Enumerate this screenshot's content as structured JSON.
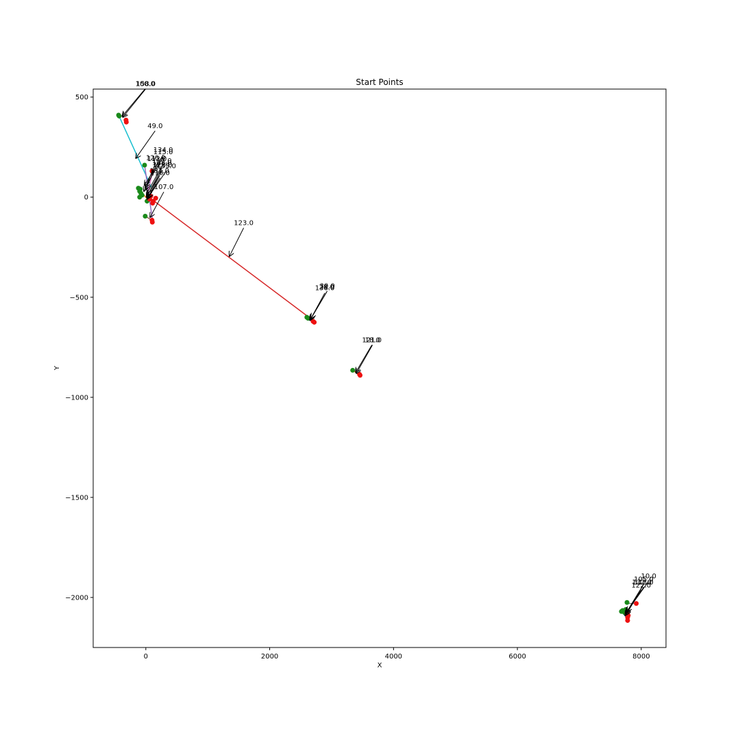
{
  "chart_data": {
    "type": "scatter",
    "title": "Start Points",
    "xlabel": "X",
    "ylabel": "Y",
    "xlim": [
      -850,
      8400
    ],
    "ylim": [
      -2250,
      540
    ],
    "xticks": [
      0,
      2000,
      4000,
      6000,
      8000
    ],
    "xtick_labels": [
      "0",
      "2000",
      "4000",
      "6000",
      "8000"
    ],
    "yticks": [
      500,
      0,
      -500,
      -1000,
      -1500,
      -2000
    ],
    "ytick_labels": [
      "500",
      "0",
      "−500",
      "−1000",
      "−1500",
      "−2000"
    ],
    "grid": false,
    "legend": "none",
    "colors": {
      "start_point": "#1a8a1a",
      "end_point": "#ee1111",
      "arrow": "#000000"
    },
    "segments": [
      {
        "x": [
          -440,
          90
        ],
        "y": [
          410,
          50
        ],
        "color": "#17becf"
      },
      {
        "x": [
          50,
          2720
        ],
        "y": [
          0,
          -620
        ],
        "color": "#d62728"
      },
      {
        "x": [
          -20,
          110
        ],
        "y": [
          160,
          -120
        ],
        "color": "#9467bd"
      },
      {
        "x": [
          -10,
          100
        ],
        "y": [
          -95,
          -115
        ],
        "color": "#8c564b"
      },
      {
        "x": [
          40,
          110
        ],
        "y": [
          30,
          130
        ],
        "color": "#e377c2"
      },
      {
        "x": [
          -120,
          60
        ],
        "y": [
          40,
          -20
        ],
        "color": "#ff7f0e"
      },
      {
        "x": [
          2600,
          2720
        ],
        "y": [
          -600,
          -625
        ],
        "color": "#2ca02c"
      },
      {
        "x": [
          3340,
          3460
        ],
        "y": [
          -865,
          -890
        ],
        "color": "#ff7f0e"
      },
      {
        "x": [
          7680,
          7790
        ],
        "y": [
          -2070,
          -2110
        ],
        "color": "#1f77b4"
      },
      {
        "x": [
          7770,
          7920
        ],
        "y": [
          -2030,
          -2030
        ],
        "color": "#7f7f7f"
      }
    ],
    "start_points": [
      {
        "x": -440,
        "y": 410
      },
      {
        "x": -430,
        "y": 405
      },
      {
        "x": -20,
        "y": 160
      },
      {
        "x": -120,
        "y": 45
      },
      {
        "x": -100,
        "y": 30
      },
      {
        "x": -80,
        "y": 20
      },
      {
        "x": -90,
        "y": 40
      },
      {
        "x": -60,
        "y": 10
      },
      {
        "x": -100,
        "y": 0
      },
      {
        "x": -10,
        "y": -95
      },
      {
        "x": 20,
        "y": -20
      },
      {
        "x": 2600,
        "y": -600
      },
      {
        "x": 2620,
        "y": -605
      },
      {
        "x": 3340,
        "y": -865
      },
      {
        "x": 7680,
        "y": -2070
      },
      {
        "x": 7700,
        "y": -2065
      },
      {
        "x": 7770,
        "y": -2025
      },
      {
        "x": 7730,
        "y": -2075
      },
      {
        "x": 7750,
        "y": -2060
      }
    ],
    "end_points": [
      {
        "x": -320,
        "y": 385
      },
      {
        "x": -315,
        "y": 375
      },
      {
        "x": 100,
        "y": 130
      },
      {
        "x": 160,
        "y": -5
      },
      {
        "x": 110,
        "y": -30
      },
      {
        "x": 120,
        "y": -20
      },
      {
        "x": 100,
        "y": -115
      },
      {
        "x": 105,
        "y": -125
      },
      {
        "x": 60,
        "y": -10
      },
      {
        "x": 80,
        "y": 5
      },
      {
        "x": 2700,
        "y": -620
      },
      {
        "x": 2720,
        "y": -625
      },
      {
        "x": 3450,
        "y": -885
      },
      {
        "x": 3460,
        "y": -890
      },
      {
        "x": 7780,
        "y": -2100
      },
      {
        "x": 7790,
        "y": -2090
      },
      {
        "x": 7780,
        "y": -2115
      },
      {
        "x": 7920,
        "y": -2030
      },
      {
        "x": 7770,
        "y": -2080
      }
    ],
    "annotations": [
      {
        "text": "158.0",
        "x": -370,
        "y": 400,
        "tx": 0,
        "ty": 555
      },
      {
        "text": "100.0",
        "x": -380,
        "y": 405,
        "tx": -10,
        "ty": 555
      },
      {
        "text": "49.0",
        "x": -160,
        "y": 195,
        "tx": 150,
        "ty": 345
      },
      {
        "text": "134.0",
        "x": -20,
        "y": 60,
        "tx": 280,
        "ty": 225
      },
      {
        "text": "115.0",
        "x": -10,
        "y": 50,
        "tx": 280,
        "ty": 215
      },
      {
        "text": "126.0",
        "x": -30,
        "y": 30,
        "tx": 160,
        "ty": 185
      },
      {
        "text": "112.0",
        "x": 0,
        "y": 40,
        "tx": 180,
        "ty": 180
      },
      {
        "text": "117.0",
        "x": 20,
        "y": 20,
        "tx": 260,
        "ty": 170
      },
      {
        "text": "108.0",
        "x": 30,
        "y": 10,
        "tx": 260,
        "ty": 160
      },
      {
        "text": "128.0",
        "x": 10,
        "y": 0,
        "tx": 270,
        "ty": 150
      },
      {
        "text": "135.0",
        "x": 40,
        "y": 0,
        "tx": 330,
        "ty": 145
      },
      {
        "text": "131.0",
        "x": 20,
        "y": -10,
        "tx": 220,
        "ty": 120
      },
      {
        "text": "110.0",
        "x": 30,
        "y": -5,
        "tx": 230,
        "ty": 110
      },
      {
        "text": "107.0",
        "x": 70,
        "y": -100,
        "tx": 290,
        "ty": 40
      },
      {
        "text": "123.0",
        "x": 1350,
        "y": -295,
        "tx": 1580,
        "ty": -140
      },
      {
        "text": "136.0",
        "x": 2660,
        "y": -610,
        "tx": 2890,
        "ty": -465
      },
      {
        "text": "30.0",
        "x": 2670,
        "y": -605,
        "tx": 2930,
        "ty": -455
      },
      {
        "text": "28.0",
        "x": 2650,
        "y": -615,
        "tx": 2920,
        "ty": -460
      },
      {
        "text": "121.0",
        "x": 3390,
        "y": -875,
        "tx": 3650,
        "ty": -725
      },
      {
        "text": "18.0",
        "x": 3400,
        "y": -880,
        "tx": 3660,
        "ty": -725
      },
      {
        "text": "10.0",
        "x": 7770,
        "y": -2070,
        "tx": 8120,
        "ty": -1905
      },
      {
        "text": "133.0",
        "x": 7760,
        "y": -2075,
        "tx": 8010,
        "ty": -1935
      },
      {
        "text": "113.0",
        "x": 7750,
        "y": -2080,
        "tx": 8040,
        "ty": -1935
      },
      {
        "text": "122.0",
        "x": 7740,
        "y": -2090,
        "tx": 8000,
        "ty": -1950
      },
      {
        "text": "105.0",
        "x": 7760,
        "y": -2085,
        "tx": 8040,
        "ty": -1920
      }
    ]
  }
}
